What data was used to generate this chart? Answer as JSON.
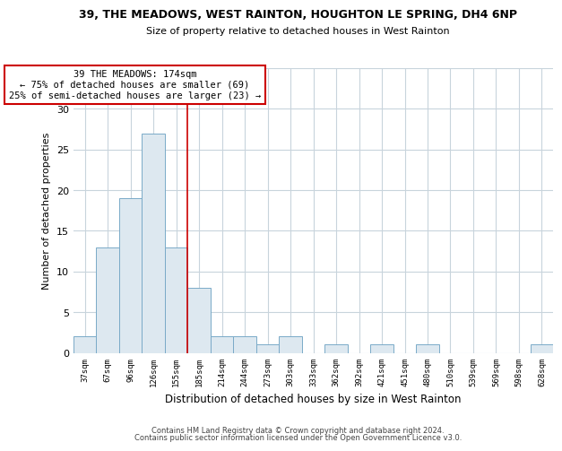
{
  "title": "39, THE MEADOWS, WEST RAINTON, HOUGHTON LE SPRING, DH4 6NP",
  "subtitle": "Size of property relative to detached houses in West Rainton",
  "xlabel": "Distribution of detached houses by size in West Rainton",
  "ylabel": "Number of detached properties",
  "bar_color": "#dde8f0",
  "bar_edge_color": "#7aaac8",
  "categories": [
    "37sqm",
    "67sqm",
    "96sqm",
    "126sqm",
    "155sqm",
    "185sqm",
    "214sqm",
    "244sqm",
    "273sqm",
    "303sqm",
    "333sqm",
    "362sqm",
    "392sqm",
    "421sqm",
    "451sqm",
    "480sqm",
    "510sqm",
    "539sqm",
    "569sqm",
    "598sqm",
    "628sqm"
  ],
  "values": [
    2,
    13,
    19,
    27,
    13,
    8,
    2,
    2,
    1,
    2,
    0,
    1,
    0,
    1,
    0,
    1,
    0,
    0,
    0,
    0,
    1
  ],
  "vline_x": 4.5,
  "vline_color": "#cc0000",
  "annotation_title": "39 THE MEADOWS: 174sqm",
  "annotation_line1": "← 75% of detached houses are smaller (69)",
  "annotation_line2": "25% of semi-detached houses are larger (23) →",
  "annotation_box_color": "#ffffff",
  "annotation_box_edge": "#cc0000",
  "ylim": [
    0,
    35
  ],
  "yticks": [
    0,
    5,
    10,
    15,
    20,
    25,
    30,
    35
  ],
  "footer1": "Contains HM Land Registry data © Crown copyright and database right 2024.",
  "footer2": "Contains public sector information licensed under the Open Government Licence v3.0.",
  "background_color": "#ffffff",
  "grid_color": "#c8d4dc"
}
